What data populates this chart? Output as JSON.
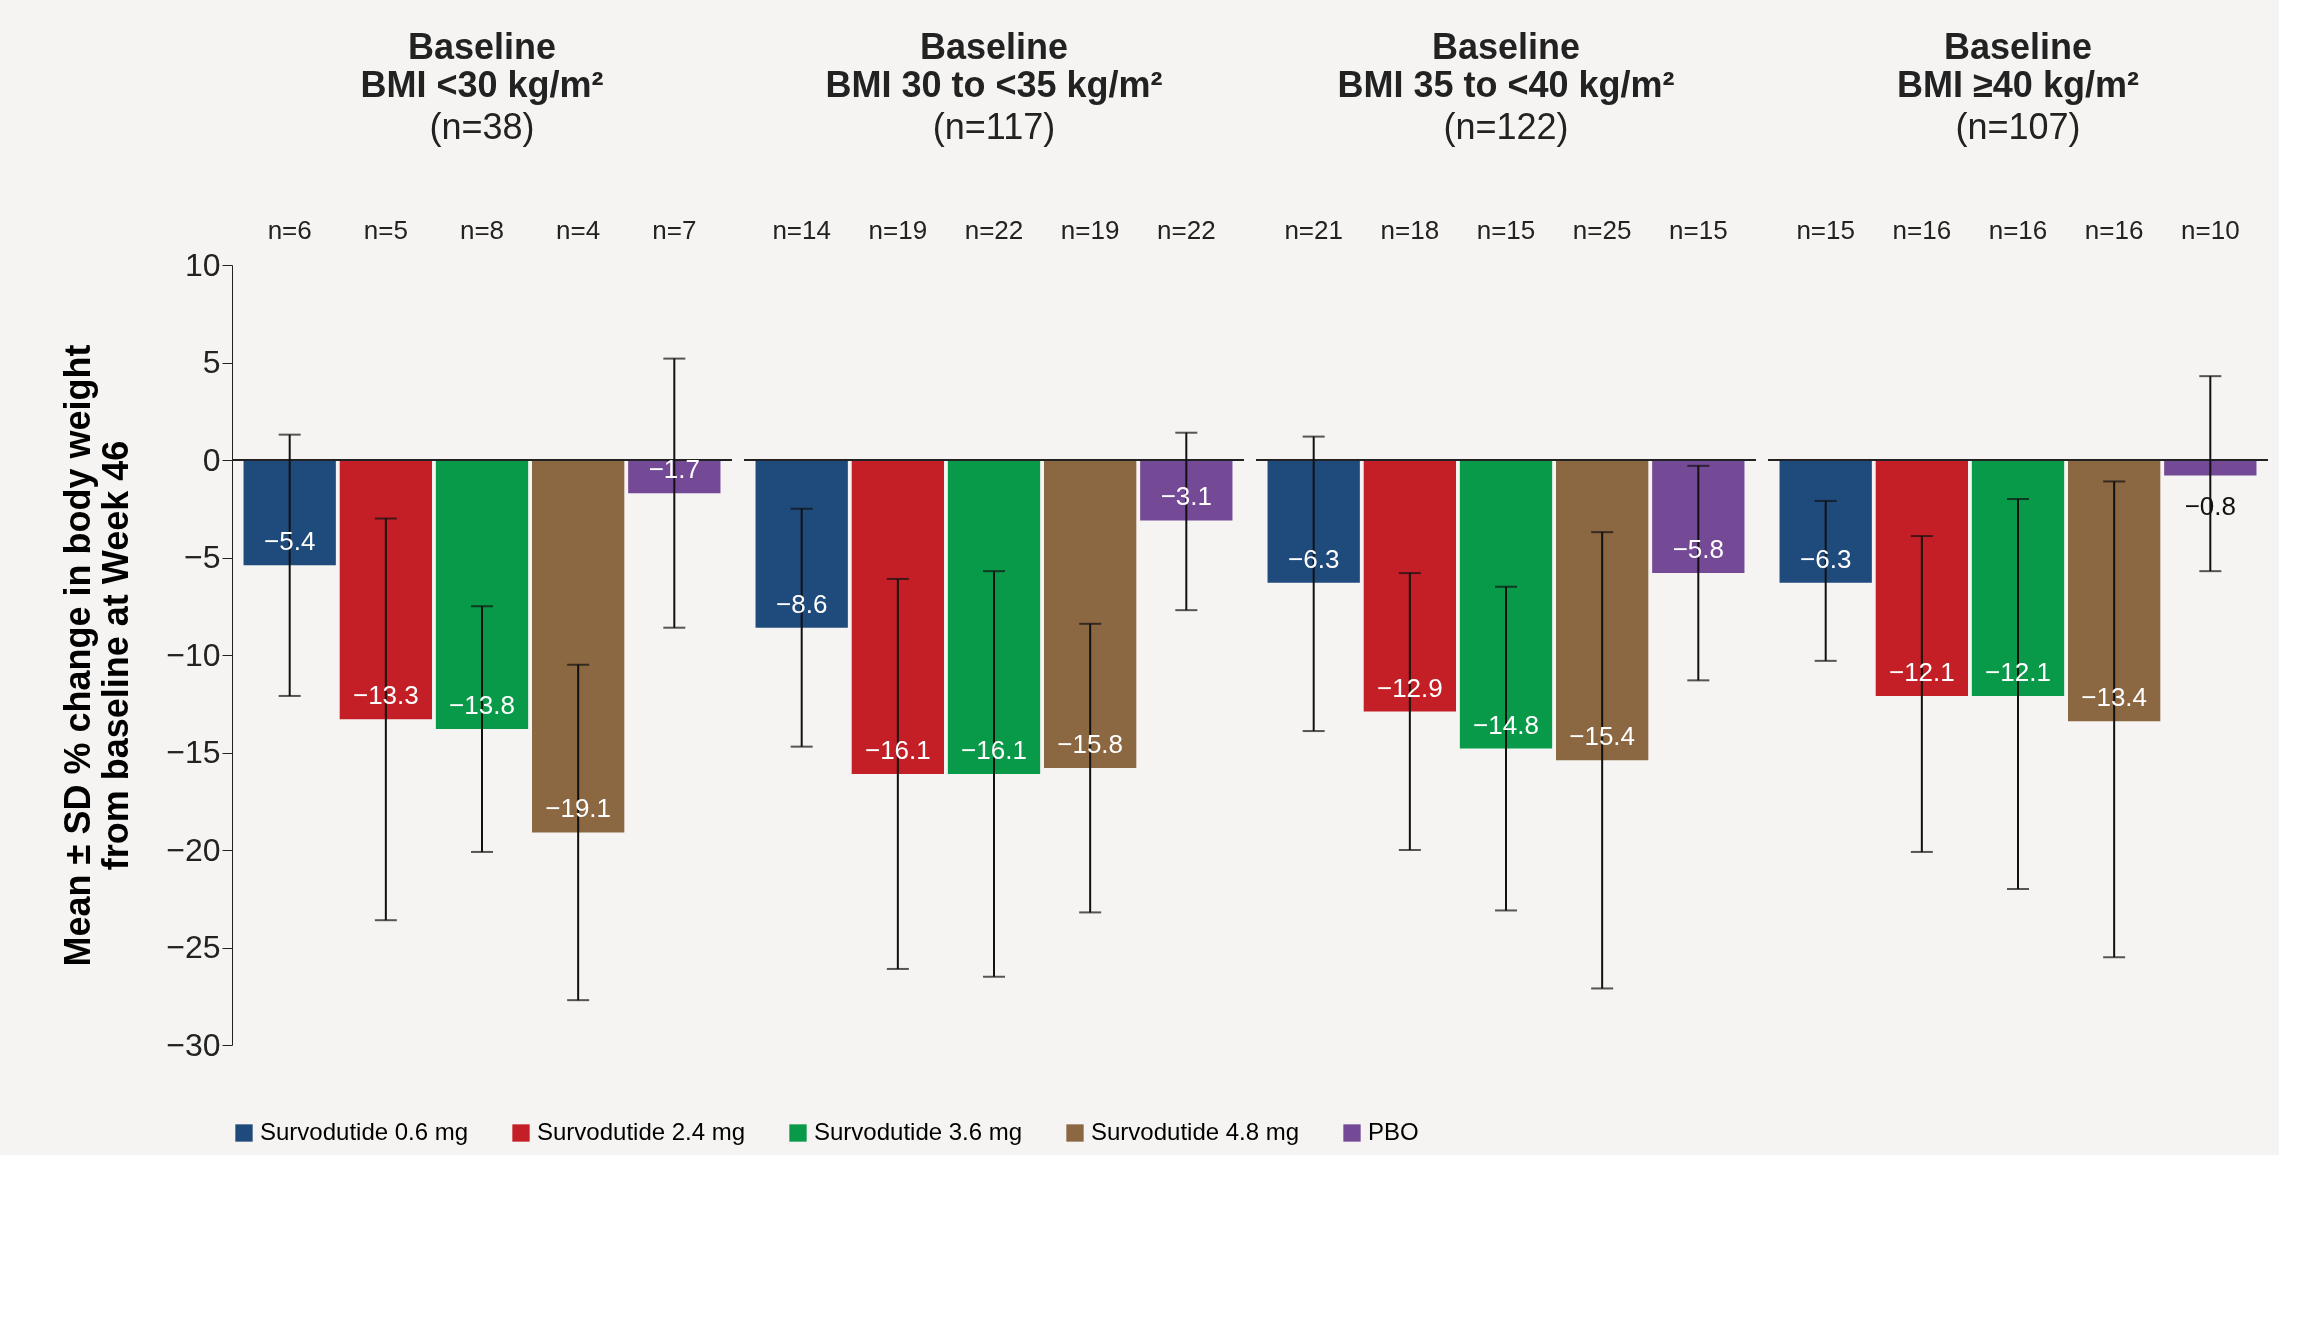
{
  "chart_data": [
    {
      "type": "bar",
      "title": "Baseline\nBMI <30 kg/m²",
      "subtitle": "(n=38)",
      "ylabel": "Mean ± SD % change in body weight\nfrom baseline at Week 46",
      "categories": [
        "n=6",
        "n=5",
        "n=8",
        "n=4",
        "n=7"
      ],
      "ylim": [
        -30,
        10
      ],
      "yticks": [
        -30,
        -25,
        -20,
        -15,
        -10,
        -5,
        0,
        5,
        10
      ],
      "data_labels": true,
      "legend": "bottom",
      "series": [
        {
          "name": "Survodutide 0.6 mg",
          "color": "#1f4a7c",
          "values": [
            -5.4,
            null,
            null,
            null,
            null
          ],
          "errors": [
            [
              -12.1,
              1.3
            ],
            null,
            null,
            null,
            null
          ]
        },
        {
          "name": "Survodutide 2.4 mg",
          "color": "#c41f26",
          "values": [
            null,
            -13.3,
            null,
            null,
            null
          ],
          "errors": [
            null,
            [
              -23.6,
              -3.0
            ],
            null,
            null,
            null
          ]
        },
        {
          "name": "Survodutide 3.6 mg",
          "color": "#089a48",
          "values": [
            null,
            null,
            -13.8,
            null,
            null
          ],
          "errors": [
            null,
            null,
            [
              -20.1,
              -7.5
            ],
            null,
            null
          ]
        },
        {
          "name": "Survodutide 4.8 mg",
          "color": "#8b6742",
          "values": [
            null,
            null,
            null,
            -19.1,
            null
          ],
          "errors": [
            null,
            null,
            null,
            [
              -27.7,
              -10.5
            ],
            null
          ]
        },
        {
          "name": "PBO",
          "color": "#744996",
          "values": [
            null,
            null,
            null,
            null,
            -1.7
          ],
          "errors": [
            null,
            null,
            null,
            null,
            [
              -8.6,
              5.2
            ]
          ]
        }
      ]
    },
    {
      "type": "bar",
      "title": "Baseline\nBMI 30 to <35 kg/m²",
      "subtitle": "(n=117)",
      "categories": [
        "n=14",
        "n=19",
        "n=22",
        "n=19",
        "n=22"
      ],
      "ylim": [
        -30,
        10
      ],
      "tick_labels": "x",
      "data_labels": true,
      "legend": "bottom",
      "series": [
        {
          "name": "Survodutide 0.6 mg",
          "color": "#1f4a7c",
          "values": [
            -8.6,
            null,
            null,
            null,
            null
          ],
          "errors": [
            [
              -14.7,
              -2.5
            ],
            null,
            null,
            null,
            null
          ]
        },
        {
          "name": "Survodutide 2.4 mg",
          "color": "#c41f26",
          "values": [
            null,
            -16.1,
            null,
            null,
            null
          ],
          "errors": [
            null,
            [
              -26.1,
              -6.1
            ],
            null,
            null,
            null
          ]
        },
        {
          "name": "Survodutide 3.6 mg",
          "color": "#089a48",
          "values": [
            null,
            null,
            -16.1,
            null,
            null
          ],
          "errors": [
            null,
            null,
            [
              -26.5,
              -5.7
            ],
            null,
            null
          ]
        },
        {
          "name": "Survodutide 4.8 mg",
          "color": "#8b6742",
          "values": [
            null,
            null,
            null,
            -15.8,
            null
          ],
          "errors": [
            null,
            null,
            null,
            [
              -23.2,
              -8.4
            ],
            null
          ]
        },
        {
          "name": "PBO",
          "color": "#744996",
          "values": [
            null,
            null,
            null,
            null,
            -3.1
          ],
          "errors": [
            null,
            null,
            null,
            null,
            [
              -7.7,
              1.4
            ]
          ]
        }
      ]
    },
    {
      "type": "bar",
      "title": "Baseline\nBMI 35 to <40 kg/m²",
      "subtitle": "(n=122)",
      "categories": [
        "n=21",
        "n=18",
        "n=15",
        "n=25",
        "n=15"
      ],
      "ylim": [
        -30,
        10
      ],
      "tick_labels": "x",
      "data_labels": true,
      "legend": "bottom",
      "series": [
        {
          "name": "Survodutide 0.6 mg",
          "color": "#1f4a7c",
          "values": [
            -6.3,
            null,
            null,
            null,
            null
          ],
          "errors": [
            [
              -13.9,
              1.2
            ],
            null,
            null,
            null,
            null
          ]
        },
        {
          "name": "Survodutide 2.4 mg",
          "color": "#c41f26",
          "values": [
            null,
            -12.9,
            null,
            null,
            null
          ],
          "errors": [
            null,
            [
              -20.0,
              -5.8
            ],
            null,
            null,
            null
          ]
        },
        {
          "name": "Survodutide 3.6 mg",
          "color": "#089a48",
          "values": [
            null,
            null,
            -14.8,
            null,
            null
          ],
          "errors": [
            null,
            null,
            [
              -23.1,
              -6.5
            ],
            null,
            null
          ]
        },
        {
          "name": "Survodutide 4.8 mg",
          "color": "#8b6742",
          "values": [
            null,
            null,
            null,
            -15.4,
            null
          ],
          "errors": [
            null,
            null,
            null,
            [
              -27.1,
              -3.7
            ],
            null
          ]
        },
        {
          "name": "PBO",
          "color": "#744996",
          "values": [
            null,
            null,
            null,
            null,
            -5.8
          ],
          "errors": [
            null,
            null,
            null,
            null,
            [
              -11.3,
              -0.3
            ]
          ]
        }
      ]
    },
    {
      "type": "bar",
      "title": "Baseline\nBMI ≥40 kg/m²",
      "subtitle": "(n=107)",
      "categories": [
        "n=15",
        "n=16",
        "n=16",
        "n=16",
        "n=10"
      ],
      "ylim": [
        -30,
        10
      ],
      "tick_labels": "x",
      "data_labels": true,
      "legend": "bottom",
      "series": [
        {
          "name": "Survodutide 0.6 mg",
          "color": "#1f4a7c",
          "values": [
            -6.3,
            null,
            null,
            null,
            null
          ],
          "errors": [
            [
              -10.3,
              -2.1
            ],
            null,
            null,
            null,
            null
          ]
        },
        {
          "name": "Survodutide 2.4 mg",
          "color": "#c41f26",
          "values": [
            null,
            -12.1,
            null,
            null,
            null
          ],
          "errors": [
            null,
            [
              -20.1,
              -3.9
            ],
            null,
            null,
            null
          ]
        },
        {
          "name": "Survodutide 3.6 mg",
          "color": "#089a48",
          "values": [
            null,
            null,
            -12.1,
            null,
            null
          ],
          "errors": [
            null,
            null,
            [
              -22.0,
              -2.0
            ],
            null,
            null
          ]
        },
        {
          "name": "Survodutide 4.8 mg",
          "color": "#8b6742",
          "values": [
            null,
            null,
            null,
            -13.4,
            null
          ],
          "errors": [
            null,
            null,
            null,
            [
              -25.5,
              -1.1
            ],
            null
          ]
        },
        {
          "name": "PBO",
          "color": "#744996",
          "values": [
            null,
            null,
            null,
            null,
            -0.8
          ],
          "errors": [
            null,
            null,
            null,
            null,
            [
              -5.7,
              4.3
            ]
          ]
        }
      ]
    }
  ]
}
